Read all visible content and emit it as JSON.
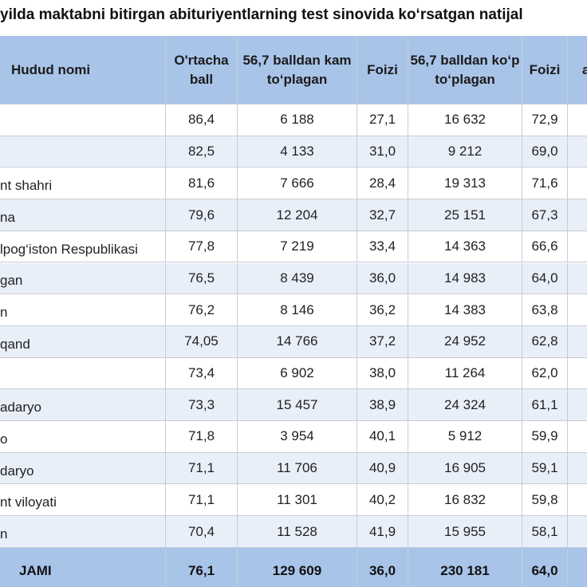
{
  "title": "yilda maktabni bitirgan abituriyentlarning test sinovida ko‘rsatgan natijal",
  "table": {
    "header": [
      "Hudud nomi",
      "O'rtacha ball",
      "56,7 balldan kam to‘plagan",
      "Foizi",
      "56,7 balldan ko‘p to‘plagan",
      "Foizi",
      "a"
    ],
    "rows": [
      {
        "cells": [
          "86,4",
          "6 188",
          "27,1",
          "16 632",
          "72,9"
        ]
      },
      {
        "cells": [
          "82,5",
          "4 133",
          "31,0",
          "9 212",
          "69,0"
        ]
      },
      {
        "name": "nt shahri",
        "cells": [
          "81,6",
          "7 666",
          "28,4",
          "19 313",
          "71,6"
        ]
      },
      {
        "name": "na",
        "cells": [
          "79,6",
          "12 204",
          "32,7",
          "25 151",
          "67,3"
        ]
      },
      {
        "name": "lpog‘iston Respublikasi",
        "cells": [
          "77,8",
          "7 219",
          "33,4",
          "14 363",
          "66,6"
        ]
      },
      {
        "name": "gan",
        "cells": [
          "76,5",
          "8 439",
          "36,0",
          "14 983",
          "64,0"
        ]
      },
      {
        "name": "n",
        "cells": [
          "76,2",
          "8 146",
          "36,2",
          "14 383",
          "63,8"
        ]
      },
      {
        "name": "qand",
        "cells": [
          "74,05",
          "14 766",
          "37,2",
          "24 952",
          "62,8"
        ]
      },
      {
        "cells": [
          "73,4",
          "6 902",
          "38,0",
          "11 264",
          "62,0"
        ]
      },
      {
        "name": "adaryo",
        "cells": [
          "73,3",
          "15 457",
          "38,9",
          "24 324",
          "61,1"
        ]
      },
      {
        "name": "o",
        "cells": [
          "71,8",
          "3 954",
          "40,1",
          "5 912",
          "59,9"
        ]
      },
      {
        "name": "daryo",
        "cells": [
          "71,1",
          "11 706",
          "40,9",
          "16 905",
          "59,1"
        ]
      },
      {
        "name": "nt viloyati",
        "cells": [
          "71,1",
          "11 301",
          "40,2",
          "16 832",
          "59,8"
        ]
      },
      {
        "name": "n",
        "cells": [
          "70,4",
          "11 528",
          "41,9",
          "15 955",
          "58,1"
        ]
      }
    ],
    "total": {
      "label": "JAMI",
      "cells": [
        "76,1",
        "129 609",
        "36,0",
        "230 181",
        "64,0"
      ]
    }
  }
}
